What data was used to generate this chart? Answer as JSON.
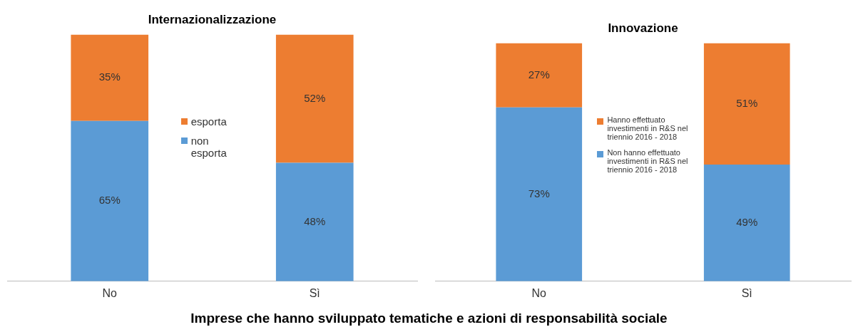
{
  "chart_data": [
    {
      "type": "bar",
      "title": "Internazionalizzazione",
      "categories": [
        "No",
        "Sì"
      ],
      "stacked": true,
      "ylim": [
        0,
        100
      ],
      "tick_labels": "x",
      "grid": false,
      "legend": "center",
      "series": [
        {
          "name": "non esporta",
          "color": "#5b9bd5",
          "values": [
            65,
            48
          ],
          "value_labels": [
            "65%",
            "48%"
          ]
        },
        {
          "name": "esporta",
          "color": "#ed7d31",
          "values": [
            35,
            52
          ],
          "value_labels": [
            "35%",
            "52%"
          ]
        }
      ],
      "annotations": [
        "Imprese che hanno sviluppato tematiche e azioni di responsabilità sociale"
      ]
    },
    {
      "type": "bar",
      "title": "Innovazione",
      "categories": [
        "No",
        "Sì"
      ],
      "stacked": true,
      "ylim": [
        0,
        100
      ],
      "tick_labels": "x",
      "grid": false,
      "legend": "center",
      "series": [
        {
          "name": "Non hanno effettuato investimenti in R&S nel triennio 2016 - 2018",
          "color": "#5b9bd5",
          "values": [
            73,
            49
          ],
          "value_labels": [
            "73%",
            "49%"
          ]
        },
        {
          "name": "Hanno effettuato investimenti in R&S nel triennio 2016 - 2018",
          "color": "#ed7d31",
          "values": [
            27,
            51
          ],
          "value_labels": [
            "27%",
            "51%"
          ]
        }
      ]
    }
  ]
}
